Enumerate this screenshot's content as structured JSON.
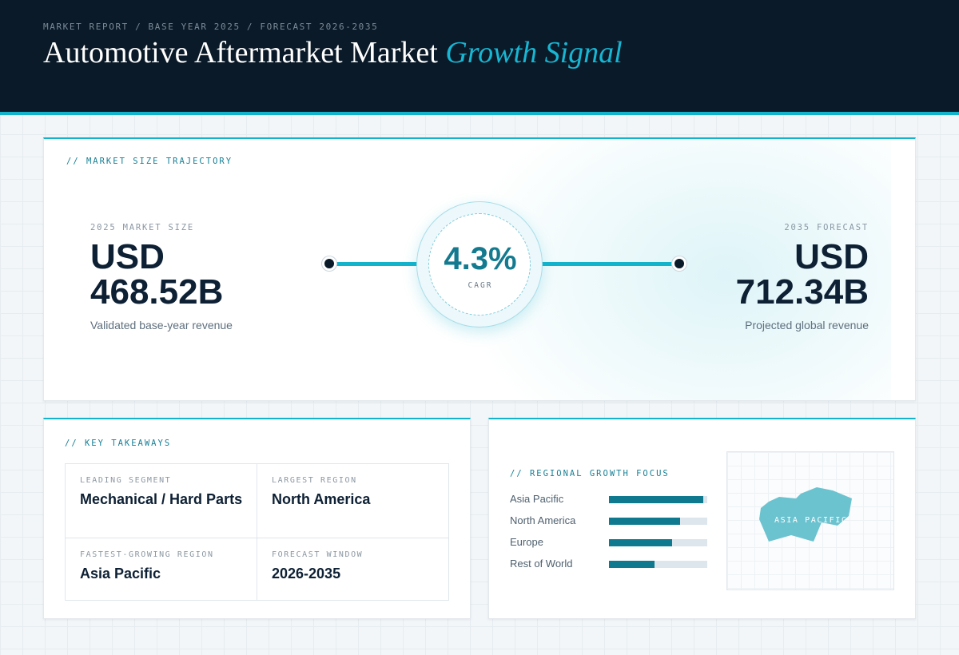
{
  "header": {
    "breadcrumb": "MARKET REPORT / BASE YEAR 2025 / FORECAST 2026-2035",
    "title_main": "Automotive Aftermarket Market",
    "title_accent": "Growth Signal"
  },
  "trajectory": {
    "label": "// MARKET SIZE TRAJECTORY",
    "start": {
      "label": "2025 MARKET SIZE",
      "currency": "USD",
      "value": "468.52B",
      "sub": "Validated base-year revenue"
    },
    "end": {
      "label": "2035 FORECAST",
      "currency": "USD",
      "value": "712.34B",
      "sub": "Projected global revenue"
    },
    "cagr": {
      "value": "4.3%",
      "label": "CAGR"
    }
  },
  "takeaways": {
    "label": "// KEY TAKEAWAYS",
    "items": [
      {
        "label": "LEADING SEGMENT",
        "value": "Mechanical / Hard Parts"
      },
      {
        "label": "LARGEST REGION",
        "value": "North America"
      },
      {
        "label": "FASTEST-GROWING REGION",
        "value": "Asia Pacific"
      },
      {
        "label": "FORECAST WINDOW",
        "value": "2026-2035"
      }
    ]
  },
  "regional": {
    "label": "// REGIONAL GROWTH FOCUS",
    "regions": [
      {
        "name": "Asia Pacific",
        "level": 0.96
      },
      {
        "name": "North America",
        "level": 0.72
      },
      {
        "name": "Europe",
        "level": 0.64
      },
      {
        "name": "Rest of World",
        "level": 0.46
      }
    ],
    "map_label": "ASIA PACIFIC"
  },
  "colors": {
    "accent": "#13b3cc",
    "header_bg": "#0b1a28",
    "bar_fill": "#0f7a8f",
    "map_fill": "#6cc3d0"
  }
}
